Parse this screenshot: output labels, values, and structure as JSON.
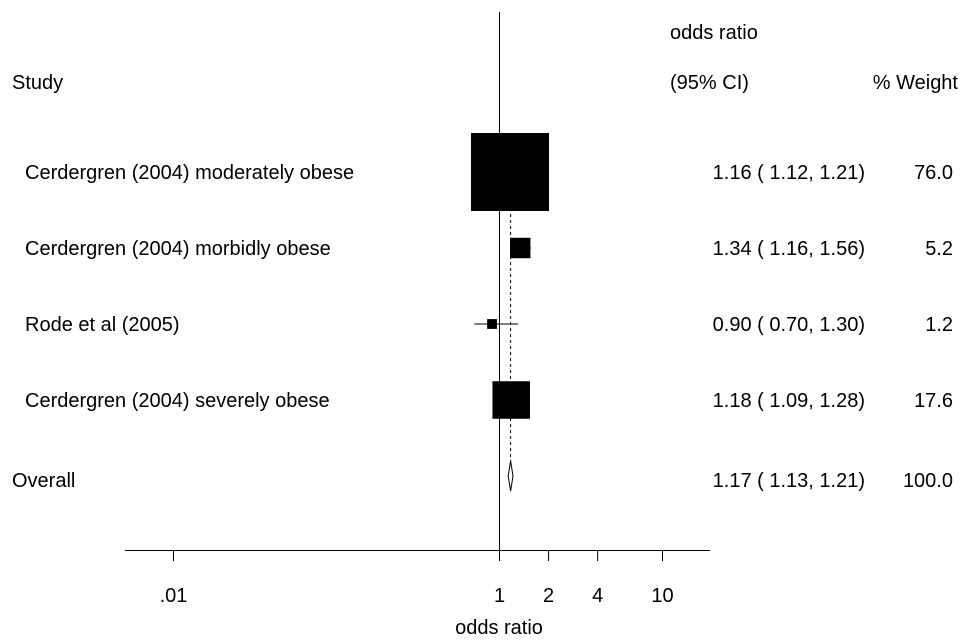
{
  "chart_data": {
    "type": "forest",
    "headers": {
      "study": "Study",
      "estimate_line1": "odds ratio",
      "estimate_line2": "(95% CI)",
      "weight": "% Weight"
    },
    "xlabel": "odds ratio",
    "x_scale": "log",
    "x_ticks": [
      0.01,
      1,
      2,
      4,
      10
    ],
    "x_tick_labels": [
      ".01",
      "1",
      "2",
      "4",
      "10"
    ],
    "x_range": [
      0.0025,
      25
    ],
    "null_value": 1,
    "studies": [
      {
        "name": "Cerdergren (2004) moderately obese",
        "or": 1.16,
        "lower": 1.12,
        "upper": 1.21,
        "ci_text": "1.16 ( 1.12, 1.21)",
        "weight": 76.0,
        "weight_text": "76.0"
      },
      {
        "name": "Cerdergren (2004) morbidly obese",
        "or": 1.34,
        "lower": 1.16,
        "upper": 1.56,
        "ci_text": "1.34 ( 1.16, 1.56)",
        "weight": 5.2,
        "weight_text": "5.2"
      },
      {
        "name": "Rode et al (2005)",
        "or": 0.9,
        "lower": 0.7,
        "upper": 1.3,
        "ci_text": "0.90 ( 0.70, 1.30)",
        "weight": 1.2,
        "weight_text": "1.2"
      },
      {
        "name": "Cerdergren (2004) severely obese",
        "or": 1.18,
        "lower": 1.09,
        "upper": 1.28,
        "ci_text": "1.18 ( 1.09, 1.28)",
        "weight": 17.6,
        "weight_text": "17.6"
      }
    ],
    "overall": {
      "name": "Overall",
      "or": 1.17,
      "lower": 1.13,
      "upper": 1.21,
      "ci_text": "1.17 ( 1.13, 1.21)",
      "weight_text": "100.0"
    }
  }
}
